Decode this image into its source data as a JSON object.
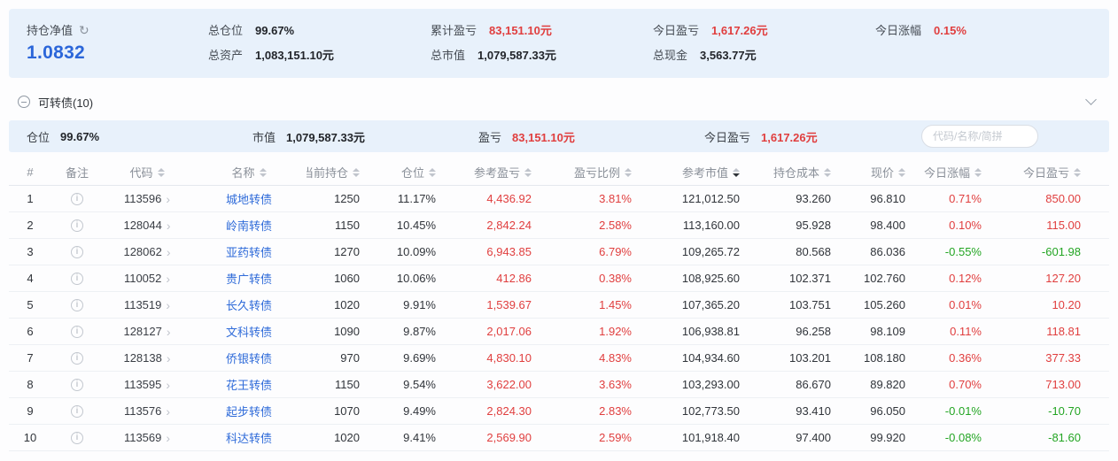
{
  "colors": {
    "accent_blue": "#2b66d9",
    "up_red": "#e03e3e",
    "down_green": "#23a523",
    "panel_blue": "#e8f1fb"
  },
  "icons": {
    "refresh": "↻",
    "note": "i",
    "code_chevron": "›"
  },
  "summary": {
    "net": {
      "label": "持仓净值",
      "value": "1.0832"
    },
    "columns": [
      {
        "top": {
          "label": "总仓位",
          "value": "99.67%"
        },
        "bottom": {
          "label": "总资产",
          "value": "1,083,151.10元"
        }
      },
      {
        "top": {
          "label": "累计盈亏",
          "value": "83,151.10元"
        },
        "bottom": {
          "label": "总市值",
          "value": "1,079,587.33元"
        }
      },
      {
        "top": {
          "label": "今日盈亏",
          "value": "1,617.26元"
        },
        "bottom": {
          "label": "总现金",
          "value": "3,563.77元"
        }
      },
      {
        "top": {
          "label": "今日涨幅",
          "value": "0.15%"
        }
      }
    ]
  },
  "section": {
    "title": "可转债(10)"
  },
  "holdings_bar": {
    "stats": [
      {
        "label": "仓位",
        "value": "99.67%",
        "color": "dark"
      },
      {
        "label": "市值",
        "value": "1,079,587.33元",
        "color": "dark"
      },
      {
        "label": "盈亏",
        "value": "83,151.10元",
        "color": "red"
      },
      {
        "label": "今日盈亏",
        "value": "1,617.26元",
        "color": "red"
      }
    ],
    "search_placeholder": "代码/名称/简拼"
  },
  "table": {
    "columns": [
      {
        "key": "index",
        "label": "#",
        "sortable": false
      },
      {
        "key": "note",
        "label": "备注",
        "sortable": false
      },
      {
        "key": "code",
        "label": "代码",
        "sortable": true
      },
      {
        "key": "name",
        "label": "名称",
        "sortable": true
      },
      {
        "key": "quantity",
        "label": "当前持仓",
        "sortable": true
      },
      {
        "key": "position",
        "label": "仓位",
        "sortable": true
      },
      {
        "key": "ref-pl",
        "label": "参考盈亏",
        "sortable": true
      },
      {
        "key": "pl-ratio",
        "label": "盈亏比例",
        "sortable": true
      },
      {
        "key": "ref-mv",
        "label": "参考市值",
        "sortable": true,
        "sorted": "desc"
      },
      {
        "key": "cost",
        "label": "持仓成本",
        "sortable": true
      },
      {
        "key": "price",
        "label": "现价",
        "sortable": true
      },
      {
        "key": "today-chg",
        "label": "今日涨幅",
        "sortable": true
      },
      {
        "key": "today-pl",
        "label": "今日盈亏",
        "sortable": true
      }
    ],
    "rows": [
      {
        "idx": "1",
        "code": "113596",
        "name": "城地转债",
        "qty": "1250",
        "pos": "11.17%",
        "pl": "4,436.92",
        "pl_ratio": "3.81%",
        "mv": "121,012.50",
        "cost": "93.260",
        "price": "96.810",
        "chg": "0.71%",
        "day_pl": "850.00"
      },
      {
        "idx": "2",
        "code": "128044",
        "name": "岭南转债",
        "qty": "1150",
        "pos": "10.45%",
        "pl": "2,842.24",
        "pl_ratio": "2.58%",
        "mv": "113,160.00",
        "cost": "95.928",
        "price": "98.400",
        "chg": "0.10%",
        "day_pl": "115.00"
      },
      {
        "idx": "3",
        "code": "128062",
        "name": "亚药转债",
        "qty": "1270",
        "pos": "10.09%",
        "pl": "6,943.85",
        "pl_ratio": "6.79%",
        "mv": "109,265.72",
        "cost": "80.568",
        "price": "86.036",
        "chg": "-0.55%",
        "day_pl": "-601.98"
      },
      {
        "idx": "4",
        "code": "110052",
        "name": "贵广转债",
        "qty": "1060",
        "pos": "10.06%",
        "pl": "412.86",
        "pl_ratio": "0.38%",
        "mv": "108,925.60",
        "cost": "102.371",
        "price": "102.760",
        "chg": "0.12%",
        "day_pl": "127.20"
      },
      {
        "idx": "5",
        "code": "113519",
        "name": "长久转债",
        "qty": "1020",
        "pos": "9.91%",
        "pl": "1,539.67",
        "pl_ratio": "1.45%",
        "mv": "107,365.20",
        "cost": "103.751",
        "price": "105.260",
        "chg": "0.01%",
        "day_pl": "10.20"
      },
      {
        "idx": "6",
        "code": "128127",
        "name": "文科转债",
        "qty": "1090",
        "pos": "9.87%",
        "pl": "2,017.06",
        "pl_ratio": "1.92%",
        "mv": "106,938.81",
        "cost": "96.258",
        "price": "98.109",
        "chg": "0.11%",
        "day_pl": "118.81"
      },
      {
        "idx": "7",
        "code": "128138",
        "name": "侨银转债",
        "qty": "970",
        "pos": "9.69%",
        "pl": "4,830.10",
        "pl_ratio": "4.83%",
        "mv": "104,934.60",
        "cost": "103.201",
        "price": "108.180",
        "chg": "0.36%",
        "day_pl": "377.33"
      },
      {
        "idx": "8",
        "code": "113595",
        "name": "花王转债",
        "qty": "1150",
        "pos": "9.54%",
        "pl": "3,622.00",
        "pl_ratio": "3.63%",
        "mv": "103,293.00",
        "cost": "86.670",
        "price": "89.820",
        "chg": "0.70%",
        "day_pl": "713.00"
      },
      {
        "idx": "9",
        "code": "113576",
        "name": "起步转债",
        "qty": "1070",
        "pos": "9.49%",
        "pl": "2,824.30",
        "pl_ratio": "2.83%",
        "mv": "102,773.50",
        "cost": "93.410",
        "price": "96.050",
        "chg": "-0.01%",
        "day_pl": "-10.70"
      },
      {
        "idx": "10",
        "code": "113569",
        "name": "科达转债",
        "qty": "1020",
        "pos": "9.41%",
        "pl": "2,569.90",
        "pl_ratio": "2.59%",
        "mv": "101,918.40",
        "cost": "97.400",
        "price": "99.920",
        "chg": "-0.08%",
        "day_pl": "-81.60"
      }
    ]
  }
}
